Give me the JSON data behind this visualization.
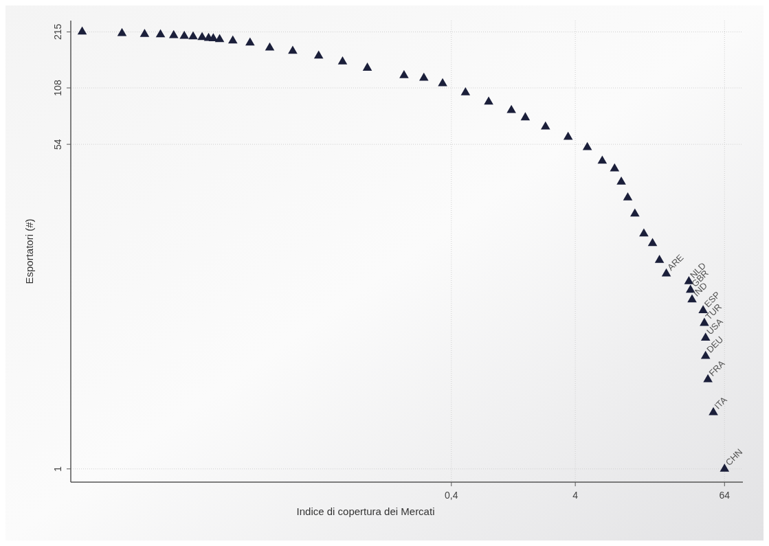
{
  "chart_data": {
    "type": "scatter",
    "xlabel": "Indice di copertura dei Mercati",
    "ylabel": "Esportatori (#)",
    "log": "xy",
    "grid": true,
    "marker": "triangle",
    "xlim": [
      0.00034,
      90
    ],
    "ylim": [
      0.85,
      247
    ],
    "xticks": [
      {
        "value": 0.4,
        "label": "0,4"
      },
      4,
      64
    ],
    "yticks": [
      1,
      54,
      108,
      215
    ],
    "series": [
      {
        "color": "#1b1f3a",
        "x": [
          0.00042,
          0.00088,
          0.00134,
          0.0018,
          0.0023,
          0.0028,
          0.0033,
          0.0039,
          0.0044,
          0.0048,
          0.0054,
          0.0069,
          0.0095,
          0.0137,
          0.021,
          0.034,
          0.053,
          0.084,
          0.166,
          0.24,
          0.34,
          0.52,
          0.8,
          1.22,
          1.58,
          2.3,
          3.5,
          5,
          6.6,
          8.3,
          9.4,
          10.6,
          12.1,
          14.3,
          16.8,
          19.1,
          21.7,
          33,
          34,
          35,
          43,
          44,
          45,
          45,
          47,
          52,
          64
        ],
        "values": [
          215,
          211,
          209,
          208,
          206,
          204,
          203,
          201,
          199,
          198,
          196,
          193,
          188,
          177,
          170,
          160,
          149,
          138,
          126,
          122,
          114,
          102,
          91,
          82,
          75,
          67,
          59,
          52,
          44,
          40,
          34,
          28,
          23,
          18,
          16,
          13,
          11,
          10,
          9,
          8,
          7,
          6,
          5,
          4,
          3,
          2,
          1
        ]
      }
    ],
    "annotations": [
      {
        "text": "ARE",
        "x": 21.7,
        "y": 11
      },
      {
        "text": "NLD",
        "x": 33,
        "y": 10
      },
      {
        "text": "GBR",
        "x": 34,
        "y": 9
      },
      {
        "text": "IND",
        "x": 35,
        "y": 8
      },
      {
        "text": "ESP",
        "x": 43,
        "y": 7
      },
      {
        "text": "TUR",
        "x": 44,
        "y": 6
      },
      {
        "text": "USA",
        "x": 45,
        "y": 5
      },
      {
        "text": "DEU",
        "x": 45,
        "y": 4
      },
      {
        "text": "FRA",
        "x": 47,
        "y": 3
      },
      {
        "text": "ITA",
        "x": 52,
        "y": 2
      },
      {
        "text": "CHN",
        "x": 64,
        "y": 1
      }
    ]
  }
}
